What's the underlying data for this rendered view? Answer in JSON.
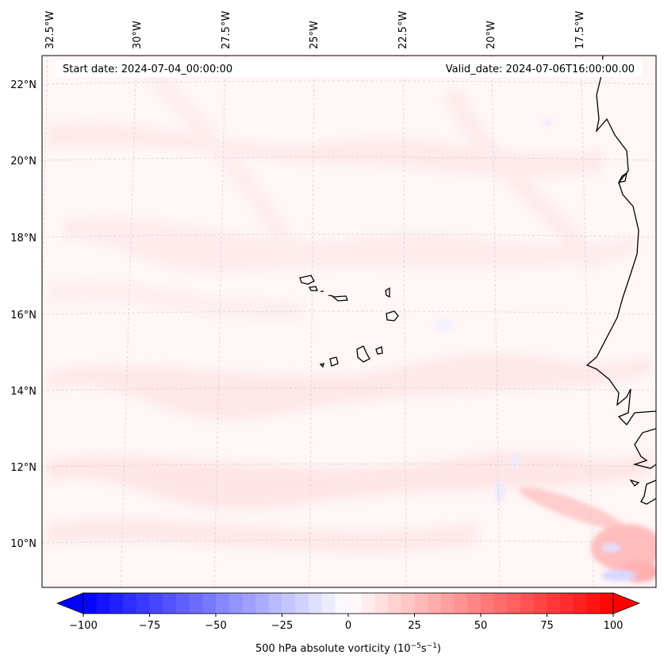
{
  "map": {
    "region": "Cape Verde / West Africa coast",
    "start_date": "Start date: 2024-07-04_00:00:00",
    "valid_date": "Valid_date: 2024-07-06T16:00:00.00",
    "lon_labels": [
      "32.5°W",
      "30°W",
      "27.5°W",
      "25°W",
      "22.5°W",
      "20°W",
      "17.5°W"
    ],
    "lat_labels": [
      "22°N",
      "20°N",
      "18°N",
      "16°N",
      "14°N",
      "12°N",
      "10°N"
    ]
  },
  "colorbar": {
    "label": "500 hPa absolute vorticity (10",
    "label_sup1": "−5",
    "label_mid": "s",
    "label_sup2": "−1",
    "label_end": ")",
    "ticks": [
      "−100",
      "−75",
      "−50",
      "−25",
      "0",
      "25",
      "50",
      "75",
      "100"
    ],
    "min_color": "#0000ff",
    "mid_color": "#ffffff",
    "max_color": "#ff0000"
  },
  "colors": {
    "background_tint": "#fff3f3",
    "coastline": "#000000",
    "gridline": "#c8c8c8"
  }
}
